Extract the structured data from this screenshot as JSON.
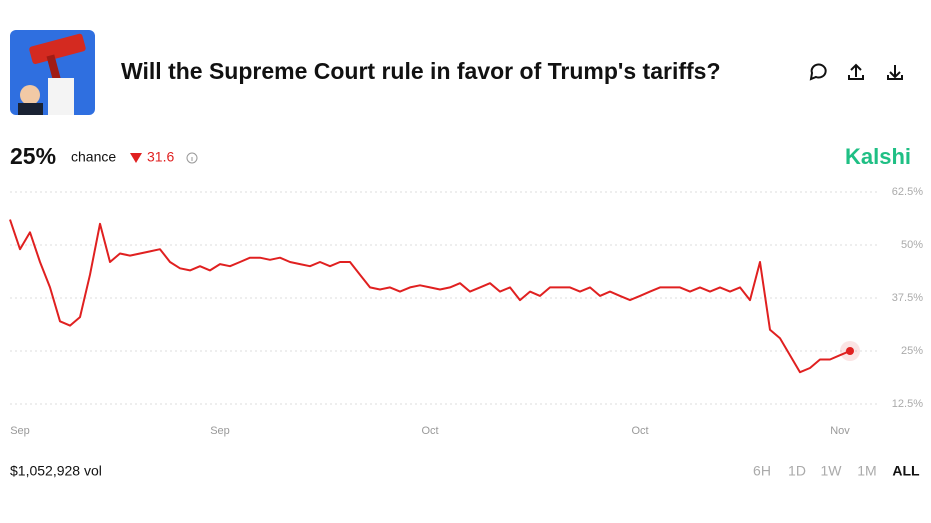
{
  "header": {
    "title": "Will the Supreme Court rule in favor of Trump's tariffs?"
  },
  "stats": {
    "chance": "25%",
    "chance_label": "chance",
    "change": "31.6"
  },
  "brand": "Kalshi",
  "chart_data": {
    "type": "line",
    "categories": [
      null,
      "Sep",
      null,
      null,
      null,
      null,
      null,
      null,
      null,
      null,
      null,
      null,
      null,
      null,
      null,
      null,
      null,
      null,
      null,
      null,
      null,
      "Sep",
      null,
      null,
      null,
      null,
      null,
      null,
      null,
      null,
      null,
      null,
      null,
      null,
      null,
      null,
      null,
      null,
      null,
      null,
      null,
      null,
      "Oct",
      null,
      null,
      null,
      null,
      null,
      null,
      null,
      null,
      null,
      null,
      null,
      null,
      null,
      null,
      null,
      null,
      null,
      null,
      null,
      null,
      "Oct",
      null,
      null,
      null,
      null,
      null,
      null,
      null,
      null,
      null,
      null,
      null,
      null,
      null,
      null,
      null,
      null,
      null,
      null,
      null,
      "Nov",
      null
    ],
    "values": [
      56,
      49,
      53,
      46,
      40,
      32,
      31,
      33,
      43,
      55,
      46,
      48,
      47.5,
      48,
      48.5,
      49,
      46,
      44.5,
      44,
      45,
      44,
      45.5,
      45,
      46,
      47,
      47,
      46.5,
      47,
      46,
      45.5,
      45,
      46,
      45,
      46,
      46,
      43,
      40,
      39.5,
      40,
      39,
      40,
      40.5,
      40,
      39.5,
      40,
      41,
      39,
      40,
      41,
      39,
      40,
      37,
      39,
      38,
      40,
      40,
      40,
      39,
      40,
      38,
      39,
      38,
      37,
      38,
      39,
      40,
      40,
      40,
      39,
      40,
      39,
      40,
      39,
      40,
      37,
      46,
      30,
      28,
      24,
      20,
      21,
      23,
      23,
      24,
      25
    ],
    "color": "#e02020",
    "ylim": [
      10,
      65
    ],
    "yticks": [
      {
        "value": 12.5,
        "label": "12.5%"
      },
      {
        "value": 25,
        "label": "25%"
      },
      {
        "value": 37.5,
        "label": "37.5%"
      },
      {
        "value": 50,
        "label": "50%"
      },
      {
        "value": 62.5,
        "label": "62.5%"
      }
    ],
    "grid": true
  },
  "footer": {
    "volume": "$1,052,928 vol",
    "ranges": [
      "6H",
      "1D",
      "1W",
      "1M",
      "ALL"
    ]
  }
}
